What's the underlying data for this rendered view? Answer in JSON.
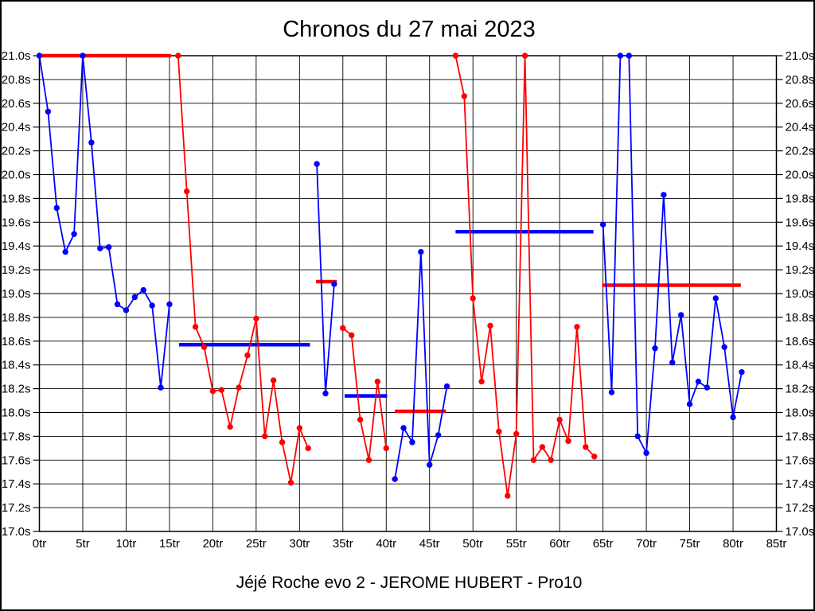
{
  "chart_data": {
    "type": "line",
    "title": "Chronos du 27 mai 2023",
    "footer": "Jéjé Roche evo 2 - JEROME HUBERT - Pro10",
    "x_axis": {
      "min": 0,
      "max": 85,
      "tick_step": 5,
      "tick_suffix": "tr"
    },
    "y_axis": {
      "min": 17.0,
      "max": 21.0,
      "tick_step": 0.2,
      "tick_suffix": "s",
      "clip_max": 21.0
    },
    "grid": true,
    "legend": "none",
    "colors": {
      "blue": "#0000ff",
      "red": "#ff0000"
    },
    "series": [
      {
        "name": "blue-stint-1",
        "color": "blue",
        "start_lap": 0,
        "values": [
          21.0,
          20.53,
          19.72,
          19.35,
          19.5,
          21.0,
          20.27,
          19.38,
          19.39,
          18.91,
          18.86,
          18.97,
          19.03,
          18.9,
          18.21,
          18.91
        ]
      },
      {
        "name": "red-stint-1",
        "color": "red",
        "start_lap": 16,
        "values": [
          21.0,
          19.86,
          18.72,
          18.55,
          18.18,
          18.19,
          17.88,
          18.21,
          18.48,
          18.79,
          17.8,
          18.27,
          17.75,
          17.41,
          17.87,
          17.7
        ]
      },
      {
        "name": "blue-stint-2",
        "color": "blue",
        "start_lap": 32,
        "values": [
          20.09,
          18.16,
          19.08
        ]
      },
      {
        "name": "red-stint-2",
        "color": "red",
        "start_lap": 35,
        "values": [
          18.71,
          18.65,
          17.94,
          17.6,
          18.26,
          17.7
        ]
      },
      {
        "name": "blue-stint-3",
        "color": "blue",
        "start_lap": 41,
        "values": [
          17.44,
          17.87,
          17.75,
          19.35,
          17.56,
          17.81,
          18.22
        ]
      },
      {
        "name": "red-stint-3",
        "color": "red",
        "start_lap": 48,
        "values": [
          21.0,
          20.66,
          18.96,
          18.26,
          18.73,
          17.84,
          17.3,
          17.82,
          21.0,
          17.6,
          17.71,
          17.6,
          17.94,
          17.76,
          18.72,
          17.71,
          17.63
        ]
      },
      {
        "name": "blue-stint-4",
        "color": "blue",
        "start_lap": 65,
        "values": [
          19.58,
          18.17,
          21.0,
          21.0,
          17.8,
          17.66,
          18.54,
          19.83,
          18.42,
          18.82,
          18.07,
          18.26,
          18.21,
          18.96,
          18.55,
          17.96,
          18.34
        ]
      }
    ],
    "average_lines": [
      {
        "name": "avg-red-stint-0",
        "color": "red",
        "value": 21.0,
        "from_lap": 0.0,
        "to_lap": 15.2
      },
      {
        "name": "avg-blue-stint-1",
        "color": "blue",
        "value": 18.57,
        "from_lap": 16.1,
        "to_lap": 31.2
      },
      {
        "name": "avg-red-stint-1",
        "color": "red",
        "value": 19.1,
        "from_lap": 31.9,
        "to_lap": 34.3
      },
      {
        "name": "avg-blue-stint-2",
        "color": "blue",
        "value": 18.14,
        "from_lap": 35.2,
        "to_lap": 40.1
      },
      {
        "name": "avg-red-stint-2",
        "color": "red",
        "value": 18.01,
        "from_lap": 41.0,
        "to_lap": 46.9
      },
      {
        "name": "avg-blue-stint-3",
        "color": "blue",
        "value": 19.52,
        "from_lap": 48.0,
        "to_lap": 63.9
      },
      {
        "name": "avg-red-stint-3",
        "color": "red",
        "value": 19.07,
        "from_lap": 64.9,
        "to_lap": 80.9
      }
    ]
  }
}
